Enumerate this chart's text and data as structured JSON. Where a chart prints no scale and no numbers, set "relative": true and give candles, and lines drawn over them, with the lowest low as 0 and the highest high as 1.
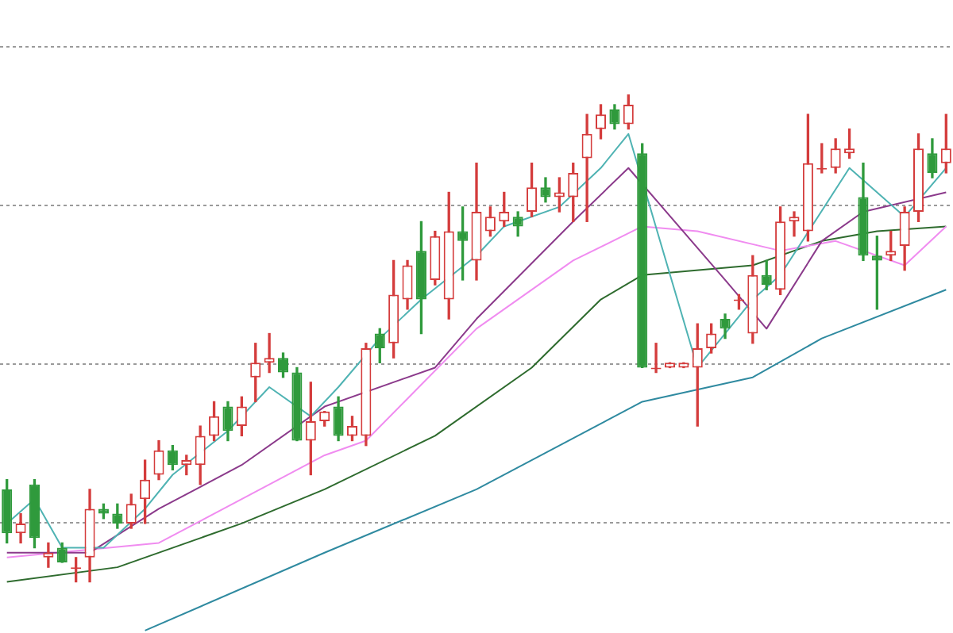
{
  "chart_data": {
    "type": "candlestick",
    "relative": true,
    "grid": "y",
    "categories": [
      null,
      null,
      null,
      null,
      null,
      null,
      null,
      null,
      null,
      null,
      null,
      null,
      null,
      null,
      null,
      null,
      null,
      null,
      null,
      null,
      null,
      null,
      null,
      null,
      null,
      null,
      null,
      null,
      null,
      null,
      null,
      null,
      null,
      null,
      null,
      null,
      null,
      null,
      null,
      null,
      null,
      null,
      null,
      null,
      null,
      null,
      null,
      null,
      null,
      null,
      null,
      null,
      null,
      null,
      null,
      null,
      null,
      null,
      null,
      null,
      null,
      null,
      null,
      null,
      null,
      null,
      null,
      null,
      null
    ],
    "ohlc": [
      [
        0.19,
        0.21,
        0.08,
        0.1
      ],
      [
        0.1,
        0.14,
        0.08,
        0.12
      ],
      [
        0.2,
        0.21,
        0.07,
        0.09
      ],
      [
        0.05,
        0.08,
        0.03,
        0.06
      ],
      [
        0.07,
        0.08,
        0.04,
        0.04
      ],
      [
        0.03,
        0.05,
        0.0,
        0.03
      ],
      [
        0.05,
        0.19,
        0.0,
        0.15
      ],
      [
        0.15,
        0.16,
        0.13,
        0.14
      ],
      [
        0.14,
        0.16,
        0.11,
        0.12
      ],
      [
        0.12,
        0.18,
        0.11,
        0.16
      ],
      [
        0.17,
        0.25,
        0.12,
        0.21
      ],
      [
        0.22,
        0.29,
        0.21,
        0.27
      ],
      [
        0.27,
        0.28,
        0.23,
        0.24
      ],
      [
        0.24,
        0.26,
        0.22,
        0.25
      ],
      [
        0.24,
        0.32,
        0.2,
        0.3
      ],
      [
        0.3,
        0.37,
        0.29,
        0.34
      ],
      [
        0.36,
        0.37,
        0.29,
        0.31
      ],
      [
        0.32,
        0.38,
        0.3,
        0.36
      ],
      [
        0.42,
        0.49,
        0.37,
        0.45
      ],
      [
        0.45,
        0.51,
        0.43,
        0.46
      ],
      [
        0.46,
        0.47,
        0.42,
        0.43
      ],
      [
        0.43,
        0.44,
        0.29,
        0.29
      ],
      [
        0.29,
        0.41,
        0.22,
        0.33
      ],
      [
        0.33,
        0.35,
        0.32,
        0.35
      ],
      [
        0.36,
        0.38,
        0.29,
        0.3
      ],
      [
        0.3,
        0.34,
        0.29,
        0.32
      ],
      [
        0.3,
        0.49,
        0.28,
        0.48
      ],
      [
        0.51,
        0.52,
        0.45,
        0.48
      ],
      [
        0.49,
        0.66,
        0.46,
        0.59
      ],
      [
        0.58,
        0.66,
        0.56,
        0.65
      ],
      [
        0.68,
        0.74,
        0.51,
        0.58
      ],
      [
        0.62,
        0.72,
        0.61,
        0.71
      ],
      [
        0.58,
        0.8,
        0.54,
        0.72
      ],
      [
        0.72,
        0.77,
        0.62,
        0.7
      ],
      [
        0.66,
        0.86,
        0.62,
        0.76
      ],
      [
        0.72,
        0.77,
        0.71,
        0.75
      ],
      [
        0.74,
        0.8,
        0.73,
        0.76
      ],
      [
        0.75,
        0.76,
        0.71,
        0.73
      ],
      [
        0.76,
        0.86,
        0.75,
        0.81
      ],
      [
        0.81,
        0.83,
        0.78,
        0.79
      ],
      [
        0.79,
        0.83,
        0.76,
        0.8
      ],
      [
        0.79,
        0.86,
        0.74,
        0.84
      ],
      [
        0.87,
        0.96,
        0.74,
        0.92
      ],
      [
        0.93,
        0.98,
        0.91,
        0.96
      ],
      [
        0.97,
        0.98,
        0.93,
        0.94
      ],
      [
        0.94,
        1.0,
        0.93,
        0.98
      ],
      [
        0.88,
        0.9,
        0.44,
        0.44
      ],
      [
        0.44,
        0.49,
        0.43,
        0.44
      ],
      [
        0.44,
        0.45,
        0.44,
        0.45
      ],
      [
        0.44,
        0.45,
        0.44,
        0.45
      ],
      [
        0.44,
        0.53,
        0.32,
        0.48
      ],
      [
        0.48,
        0.53,
        0.47,
        0.51
      ],
      [
        0.54,
        0.55,
        0.5,
        0.52
      ],
      [
        0.58,
        0.59,
        0.56,
        0.58
      ],
      [
        0.51,
        0.67,
        0.49,
        0.63
      ],
      [
        0.63,
        0.66,
        0.6,
        0.61
      ],
      [
        0.6,
        0.77,
        0.59,
        0.74
      ],
      [
        0.74,
        0.76,
        0.71,
        0.75
      ],
      [
        0.72,
        0.96,
        0.7,
        0.86
      ],
      [
        0.85,
        0.9,
        0.84,
        0.85
      ],
      [
        0.85,
        0.91,
        0.84,
        0.89
      ],
      [
        0.88,
        0.93,
        0.87,
        0.89
      ],
      [
        0.79,
        0.86,
        0.66,
        0.67
      ],
      [
        0.67,
        0.71,
        0.56,
        0.66
      ],
      [
        0.67,
        0.72,
        0.66,
        0.68
      ],
      [
        0.69,
        0.77,
        0.64,
        0.76
      ],
      [
        0.76,
        0.92,
        0.74,
        0.89
      ],
      [
        0.88,
        0.91,
        0.83,
        0.84
      ],
      [
        0.86,
        0.96,
        0.84,
        0.89
      ]
    ],
    "series": [
      {
        "type": "line",
        "color": "#4fb3b3",
        "values": [
          0.12,
          null,
          0.17,
          null,
          0.07,
          null,
          null,
          0.07,
          null,
          null,
          0.15,
          null,
          0.22,
          null,
          null,
          null,
          0.31,
          null,
          null,
          0.4,
          null,
          null,
          0.34,
          null,
          0.4,
          null,
          null,
          0.5,
          null,
          null,
          0.58,
          null,
          null,
          null,
          0.67,
          null,
          0.73,
          null,
          null,
          null,
          0.77,
          null,
          null,
          0.85,
          null,
          0.92,
          null,
          null,
          null,
          null,
          0.44,
          null,
          null,
          null,
          0.58,
          null,
          0.63,
          null,
          null,
          null,
          null,
          0.85,
          null,
          null,
          null,
          0.75,
          null,
          null,
          0.85
        ]
      },
      {
        "type": "line",
        "color": "#8b3a8b",
        "values": [
          0.06,
          null,
          null,
          null,
          null,
          null,
          0.06,
          null,
          null,
          null,
          null,
          0.15,
          null,
          null,
          null,
          null,
          null,
          0.24,
          null,
          null,
          null,
          null,
          null,
          0.36,
          null,
          null,
          null,
          null,
          null,
          null,
          null,
          0.44,
          null,
          null,
          0.54,
          null,
          null,
          null,
          null,
          null,
          null,
          0.74,
          null,
          null,
          null,
          0.85,
          null,
          null,
          null,
          null,
          null,
          null,
          0.62,
          null,
          null,
          0.52,
          null,
          null,
          null,
          0.7,
          null,
          null,
          0.76,
          null,
          null,
          null,
          null,
          null,
          0.8
        ]
      },
      {
        "type": "line",
        "color": "#f08cf0",
        "values": [
          0.05,
          null,
          null,
          null,
          null,
          null,
          null,
          null,
          null,
          null,
          null,
          0.08,
          null,
          null,
          null,
          null,
          null,
          null,
          null,
          null,
          null,
          null,
          null,
          0.26,
          null,
          null,
          0.29,
          null,
          null,
          null,
          null,
          null,
          null,
          null,
          0.52,
          null,
          null,
          null,
          null,
          null,
          null,
          0.66,
          null,
          null,
          null,
          null,
          0.73,
          null,
          null,
          null,
          0.72,
          null,
          null,
          null,
          null,
          null,
          0.68,
          null,
          null,
          null,
          0.7,
          null,
          null,
          null,
          null,
          0.65,
          null,
          null,
          0.73
        ]
      },
      {
        "type": "line",
        "color": "#2e6b2e",
        "values": [
          0.0,
          null,
          null,
          null,
          null,
          null,
          null,
          null,
          0.03,
          null,
          null,
          null,
          null,
          null,
          null,
          null,
          null,
          0.12,
          null,
          null,
          null,
          null,
          null,
          0.19,
          null,
          null,
          null,
          null,
          null,
          null,
          null,
          0.3,
          null,
          null,
          null,
          null,
          null,
          null,
          0.44,
          null,
          null,
          null,
          null,
          0.58,
          null,
          null,
          0.63,
          null,
          null,
          null,
          null,
          null,
          null,
          null,
          0.65,
          null,
          null,
          null,
          null,
          0.7,
          null,
          null,
          null,
          0.72,
          null,
          null,
          null,
          null,
          0.73
        ]
      },
      {
        "type": "line",
        "color": "#2f8aa0",
        "values": [
          null,
          null,
          null,
          null,
          null,
          null,
          null,
          null,
          null,
          null,
          -0.1,
          null,
          null,
          null,
          null,
          null,
          null,
          null,
          null,
          null,
          null,
          null,
          null,
          0.06,
          null,
          null,
          null,
          null,
          null,
          null,
          null,
          null,
          null,
          null,
          0.19,
          null,
          null,
          null,
          null,
          null,
          null,
          null,
          null,
          null,
          null,
          null,
          0.37,
          null,
          null,
          null,
          null,
          null,
          null,
          null,
          0.42,
          null,
          null,
          null,
          null,
          0.5,
          null,
          null,
          null,
          null,
          null,
          null,
          null,
          null,
          0.6
        ]
      }
    ]
  }
}
